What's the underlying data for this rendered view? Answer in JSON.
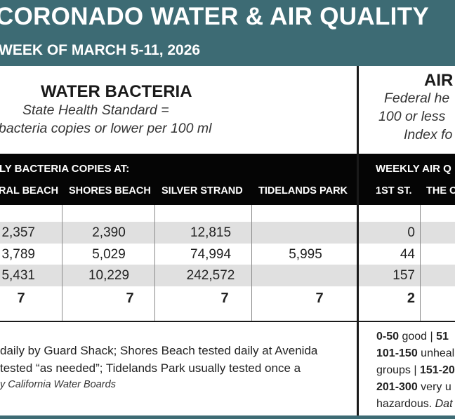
{
  "header": {
    "title": "CORONADO WATER & AIR QUALITY",
    "subtitle": "WEEK OF MARCH 5-11, 2026",
    "bg_color": "#3d6b74"
  },
  "water": {
    "title": "WATER BACTERIA",
    "subtitle_line1": "State Health Standard  =",
    "subtitle_line2": "bacteria copies or lower per 100 ml",
    "bar_label": "LY BACTERIA COPIES AT:",
    "columns": [
      "RAL BEACH",
      "SHORES BEACH",
      "SILVER STRAND",
      "TIDELANDS PARK"
    ],
    "rows": [
      [
        "2,357",
        "2,390",
        "12,815",
        ""
      ],
      [
        "3,789",
        "5,029",
        "74,994",
        "5,995"
      ],
      [
        "5,431",
        "10,229",
        "242,572",
        ""
      ],
      [
        "7",
        "7",
        "7",
        "7"
      ]
    ],
    "notes": {
      "line1": "daily by Guard Shack; Shores Beach tested daily at Avenida",
      "line2": "tested “as needed”; Tidelands Park usually tested once a",
      "line3": "y California Water Boards"
    }
  },
  "air": {
    "title": "AIR",
    "subtitle_line1": "Federal he",
    "subtitle_line2": "100 or less",
    "subtitle_line3": "Index fo",
    "bar_label": "WEEKLY AIR Q",
    "columns": [
      "1ST ST.",
      "THE C"
    ],
    "rows": [
      [
        "0",
        ""
      ],
      [
        "44",
        ""
      ],
      [
        "157",
        ""
      ],
      [
        "2",
        ""
      ]
    ],
    "legend": {
      "l1_range": "0-50",
      "l1_text": " good | ",
      "l1_cut": "51",
      "l2_range": "101-150",
      "l2_text": " unheal",
      "l3_text": "groups | ",
      "l3_cut": "151-20",
      "l4_range": "201-300",
      "l4_text": " very u",
      "l5_text": "hazardous. ",
      "l5_cut": "Dat"
    }
  }
}
